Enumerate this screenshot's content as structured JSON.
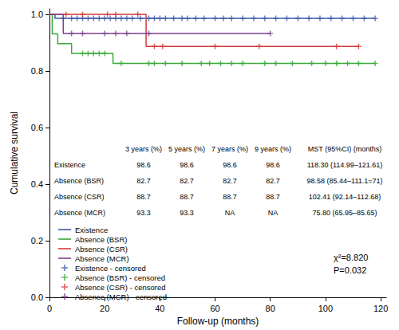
{
  "chart_data": {
    "type": "line",
    "x_label": "Follow-up (months)",
    "y_label": "Cumulative survival",
    "xlim": [
      0,
      122
    ],
    "xticks": [
      0,
      20,
      40,
      60,
      80,
      100,
      120
    ],
    "ylim": [
      0,
      1.02
    ],
    "yticks": [
      {
        "value": 0,
        "label": "0.0"
      },
      0.2,
      0.4,
      0.6,
      0.8,
      {
        "value": 1,
        "label": "1.0"
      }
    ],
    "grid": false,
    "legend": "lower left",
    "series": [
      {
        "name": "Existence",
        "type": "line",
        "line_style": "step",
        "color": "#3c5aa6",
        "x": [
          0,
          2,
          118
        ],
        "values": [
          1,
          0.986,
          0.986
        ]
      },
      {
        "name": "Absence (BSR)",
        "type": "line",
        "line_style": "step",
        "color": "#3aa83a",
        "x": [
          0,
          1,
          3,
          8,
          23,
          118
        ],
        "values": [
          1,
          0.931,
          0.897,
          0.862,
          0.827,
          0.827
        ]
      },
      {
        "name": "Absence (CSR)",
        "type": "line",
        "line_style": "step",
        "color": "#d33a3a",
        "x": [
          0,
          35,
          112
        ],
        "values": [
          1,
          0.887,
          0.887
        ]
      },
      {
        "name": "Absence (MCR)",
        "type": "line",
        "line_style": "step",
        "color": "#7b3f8c",
        "x": [
          0,
          5,
          80
        ],
        "values": [
          1,
          0.933,
          0.933
        ]
      },
      {
        "name": "Existence - censored",
        "type": "scatter",
        "marker": "plus",
        "color": "#3c5aa6",
        "x": [
          5,
          8,
          10,
          12,
          14,
          16,
          18,
          20,
          22,
          24,
          26,
          28,
          30,
          33,
          36,
          38,
          40,
          42,
          45,
          48,
          50,
          53,
          56,
          60,
          63,
          66,
          70,
          74,
          78,
          82,
          86,
          90,
          94,
          98,
          102,
          106,
          110,
          114,
          118
        ],
        "values": [
          0.986,
          0.986,
          0.986,
          0.986,
          0.986,
          0.986,
          0.986,
          0.986,
          0.986,
          0.986,
          0.986,
          0.986,
          0.986,
          0.986,
          0.986,
          0.986,
          0.986,
          0.986,
          0.986,
          0.986,
          0.986,
          0.986,
          0.986,
          0.986,
          0.986,
          0.986,
          0.986,
          0.986,
          0.986,
          0.986,
          0.986,
          0.986,
          0.986,
          0.986,
          0.986,
          0.986,
          0.986,
          0.986,
          0.986
        ]
      },
      {
        "name": "Absence (BSR) - censored",
        "type": "scatter",
        "marker": "plus",
        "color": "#3aa83a",
        "x": [
          12,
          14,
          16,
          18,
          20,
          26,
          36,
          38,
          42,
          48,
          55,
          58,
          62,
          66,
          70,
          78,
          82,
          88,
          95,
          100,
          104,
          108,
          112,
          118
        ],
        "values": [
          0.862,
          0.862,
          0.862,
          0.862,
          0.862,
          0.827,
          0.827,
          0.827,
          0.827,
          0.827,
          0.827,
          0.827,
          0.827,
          0.827,
          0.827,
          0.827,
          0.827,
          0.827,
          0.827,
          0.827,
          0.827,
          0.827,
          0.827,
          0.827
        ]
      },
      {
        "name": "Absence (CSR) - censored",
        "type": "scatter",
        "marker": "plus",
        "color": "#d33a3a",
        "x": [
          6,
          12,
          21,
          24,
          32,
          38,
          41,
          60,
          76,
          104,
          112
        ],
        "values": [
          1,
          1,
          1,
          1,
          1,
          0.887,
          0.887,
          0.887,
          0.887,
          0.887,
          0.887
        ]
      },
      {
        "name": "Absence (MCR) - censored",
        "type": "scatter",
        "marker": "plus",
        "color": "#7b3f8c",
        "x": [
          8,
          12,
          20,
          24,
          28,
          36,
          80
        ],
        "values": [
          0.933,
          0.933,
          0.933,
          0.933,
          0.933,
          0.933,
          0.933
        ]
      }
    ],
    "table": {
      "columns": [
        "3 years (%)",
        "5 years (%)",
        "7 years (%)",
        "9 years (%)",
        "MST (95%CI) (months)"
      ],
      "rows": [
        {
          "label": "Existence",
          "cells": [
            "98.6",
            "98.6",
            "98.6",
            "98.6",
            "118.30 (114.99–121.61)"
          ]
        },
        {
          "label": "Absence (BSR)",
          "cells": [
            "82.7",
            "82.7",
            "82.7",
            "82.7",
            "98.58 (85.44–111.1=71)"
          ]
        },
        {
          "label": "Absence (CSR)",
          "cells": [
            "88.7",
            "88.7",
            "88.7",
            "88.7",
            "102.41 (92.14–112.68)"
          ]
        },
        {
          "label": "Absence (MCR)",
          "cells": [
            "93.3",
            "93.3",
            "NA",
            "NA",
            "75.80 (65.95–85.65)"
          ]
        }
      ]
    },
    "annotations": [
      "χ²=8.820",
      "P=0.032"
    ]
  }
}
